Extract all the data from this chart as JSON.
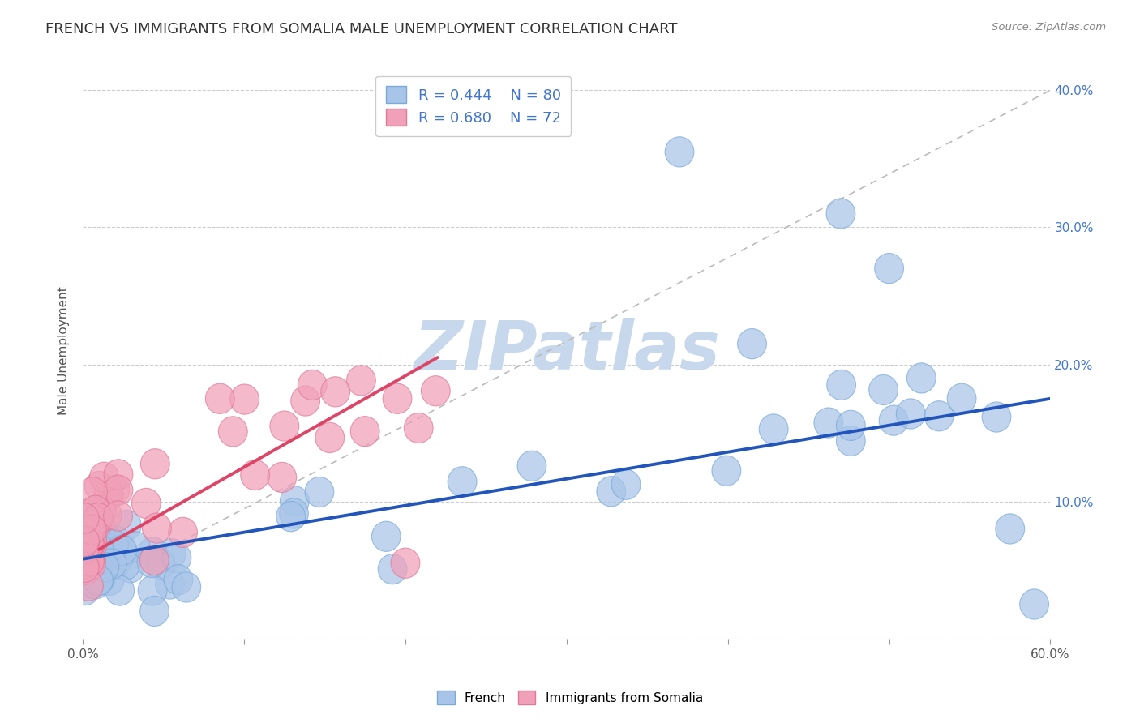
{
  "title": "FRENCH VS IMMIGRANTS FROM SOMALIA MALE UNEMPLOYMENT CORRELATION CHART",
  "source": "Source: ZipAtlas.com",
  "ylabel": "Male Unemployment",
  "xlim": [
    0.0,
    0.6
  ],
  "ylim": [
    0.0,
    0.42
  ],
  "french_R": 0.444,
  "french_N": 80,
  "somalia_R": 0.68,
  "somalia_N": 72,
  "french_color": "#a8c4e8",
  "somalia_color": "#f0a0b8",
  "french_edge_color": "#7aaad8",
  "somalia_edge_color": "#e07898",
  "trend_french_color": "#2255bb",
  "trend_somalia_color": "#dd4466",
  "trend_dashed_color": "#bbbbbb",
  "watermark": "ZIPatlas",
  "watermark_color": "#c8d8ec",
  "background_color": "#ffffff",
  "ytick_color": "#4477cc",
  "title_color": "#333333",
  "source_color": "#888888"
}
